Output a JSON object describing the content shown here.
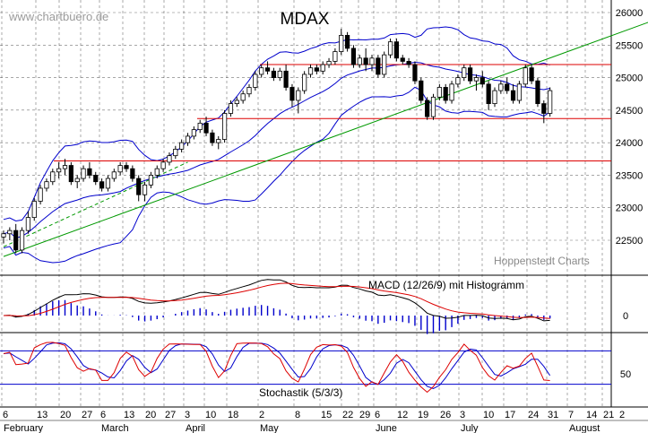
{
  "chart_data": {
    "type": "candlestick",
    "title": "MDAX",
    "watermark": "www.chartbuero.de",
    "source": "Hoppenstedt Charts",
    "colors": {
      "candle": "#000000",
      "bollinger": "#0000cc",
      "trendline": "#009900",
      "support": "#dd0000",
      "macd": "#000000",
      "signal": "#dd0000",
      "histogram": "#0000cc",
      "stoch_k": "#dd0000",
      "stoch_d": "#0000cc",
      "stoch_level": "#0000cc",
      "grid": "#000000"
    },
    "price_axis": {
      "ticks": [
        22500,
        23000,
        23500,
        24000,
        24500,
        25000,
        25500,
        26000
      ],
      "tick_labels": [
        "22500",
        "23000",
        "23500",
        "24000",
        "24500",
        "25000",
        "25500",
        "26000"
      ],
      "range": [
        21700,
        26150
      ]
    },
    "x_axis": {
      "day_labels": [
        "6",
        "13",
        "20",
        "27",
        "6",
        "13",
        "20",
        "27",
        "3",
        "10",
        "18",
        "2",
        "8",
        "15",
        "22",
        "29",
        "6",
        "12",
        "19",
        "26",
        "3",
        "10",
        "17",
        "24",
        "31",
        "7",
        "14",
        "21",
        "2"
      ],
      "month_labels": [
        "February",
        "March",
        "April",
        "May",
        "June",
        "July",
        "August"
      ],
      "month_day_index": [
        0,
        4,
        8,
        11,
        16,
        20,
        25
      ]
    },
    "support_levels": [
      25200,
      24370,
      23720
    ],
    "trendlines": [
      {
        "style": "solid",
        "from": [
          0,
          22250
        ],
        "to": [
          105,
          25850
        ]
      },
      {
        "style": "dashed",
        "from": [
          0,
          22400
        ],
        "to": [
          30,
          23700
        ]
      }
    ],
    "candles": [
      [
        22550,
        22650,
        22450,
        22600
      ],
      [
        22600,
        22700,
        22500,
        22650
      ],
      [
        22650,
        22750,
        22300,
        22350
      ],
      [
        22350,
        22700,
        22300,
        22650
      ],
      [
        22650,
        22950,
        22600,
        22850
      ],
      [
        22850,
        23150,
        22800,
        23100
      ],
      [
        23100,
        23350,
        23050,
        23300
      ],
      [
        23300,
        23450,
        23250,
        23400
      ],
      [
        23400,
        23600,
        23350,
        23550
      ],
      [
        23550,
        23700,
        23450,
        23600
      ],
      [
        23600,
        23750,
        23500,
        23650
      ],
      [
        23650,
        23700,
        23350,
        23400
      ],
      [
        23400,
        23500,
        23300,
        23450
      ],
      [
        23450,
        23650,
        23400,
        23600
      ],
      [
        23600,
        23700,
        23450,
        23500
      ],
      [
        23500,
        23550,
        23350,
        23400
      ],
      [
        23400,
        23450,
        23250,
        23300
      ],
      [
        23300,
        23500,
        23250,
        23450
      ],
      [
        23450,
        23600,
        23400,
        23550
      ],
      [
        23550,
        23700,
        23500,
        23650
      ],
      [
        23650,
        23700,
        23550,
        23600
      ],
      [
        23600,
        23650,
        23400,
        23450
      ],
      [
        23450,
        23500,
        23100,
        23200
      ],
      [
        23200,
        23400,
        23100,
        23350
      ],
      [
        23350,
        23550,
        23300,
        23500
      ],
      [
        23500,
        23650,
        23450,
        23600
      ],
      [
        23600,
        23750,
        23550,
        23700
      ],
      [
        23700,
        23850,
        23650,
        23800
      ],
      [
        23800,
        23950,
        23750,
        23900
      ],
      [
        23900,
        24050,
        23850,
        24000
      ],
      [
        24000,
        24150,
        23950,
        24100
      ],
      [
        24100,
        24250,
        24050,
        24200
      ],
      [
        24200,
        24350,
        24150,
        24300
      ],
      [
        24300,
        24400,
        24100,
        24150
      ],
      [
        24150,
        24200,
        23950,
        24000
      ],
      [
        24000,
        24100,
        23900,
        24050
      ],
      [
        24050,
        24500,
        24000,
        24450
      ],
      [
        24450,
        24650,
        24400,
        24600
      ],
      [
        24600,
        24700,
        24550,
        24650
      ],
      [
        24650,
        24800,
        24600,
        24750
      ],
      [
        24750,
        24900,
        24700,
        24850
      ],
      [
        24850,
        25100,
        24800,
        25050
      ],
      [
        25050,
        25200,
        25000,
        25150
      ],
      [
        25150,
        25250,
        25050,
        25100
      ],
      [
        25100,
        25150,
        24950,
        25000
      ],
      [
        25000,
        25150,
        24950,
        25100
      ],
      [
        25100,
        25200,
        24800,
        24850
      ],
      [
        24850,
        24900,
        24550,
        24650
      ],
      [
        24650,
        24850,
        24450,
        24800
      ],
      [
        24800,
        25100,
        24750,
        25050
      ],
      [
        25050,
        25200,
        25000,
        25150
      ],
      [
        25150,
        25200,
        25050,
        25100
      ],
      [
        25100,
        25250,
        25050,
        25200
      ],
      [
        25200,
        25300,
        25150,
        25250
      ],
      [
        25250,
        25450,
        25200,
        25400
      ],
      [
        25400,
        25750,
        25350,
        25650
      ],
      [
        25650,
        25700,
        25400,
        25450
      ],
      [
        25450,
        25500,
        25150,
        25200
      ],
      [
        25200,
        25350,
        25150,
        25300
      ],
      [
        25300,
        25450,
        25100,
        25200
      ],
      [
        25200,
        25350,
        25100,
        25300
      ],
      [
        25300,
        25350,
        25000,
        25050
      ],
      [
        25050,
        25400,
        25000,
        25350
      ],
      [
        25350,
        25600,
        25300,
        25550
      ],
      [
        25550,
        25600,
        25250,
        25300
      ],
      [
        25300,
        25350,
        25200,
        25250
      ],
      [
        25250,
        25300,
        25150,
        25200
      ],
      [
        25200,
        25250,
        24900,
        24950
      ],
      [
        24950,
        25000,
        24600,
        24650
      ],
      [
        24650,
        24700,
        24350,
        24400
      ],
      [
        24400,
        24750,
        24350,
        24700
      ],
      [
        24700,
        24900,
        24650,
        24850
      ],
      [
        24850,
        24900,
        24600,
        24650
      ],
      [
        24650,
        24950,
        24600,
        24900
      ],
      [
        24900,
        25050,
        24850,
        25000
      ],
      [
        25000,
        25200,
        24950,
        25150
      ],
      [
        25150,
        25200,
        24900,
        24950
      ],
      [
        24950,
        25050,
        24800,
        25000
      ],
      [
        25000,
        25100,
        24850,
        24900
      ],
      [
        24900,
        24950,
        24500,
        24600
      ],
      [
        24600,
        24850,
        24550,
        24800
      ],
      [
        24800,
        24950,
        24750,
        24900
      ],
      [
        24900,
        25000,
        24750,
        24800
      ],
      [
        24800,
        24900,
        24600,
        24650
      ],
      [
        24650,
        24950,
        24600,
        24900
      ],
      [
        24900,
        25200,
        24850,
        25150
      ],
      [
        25150,
        25200,
        24900,
        24950
      ],
      [
        24950,
        25000,
        24550,
        24600
      ],
      [
        24600,
        24650,
        24300,
        24450
      ],
      [
        24450,
        24850,
        24400,
        24800
      ]
    ],
    "macd": {
      "label": "MACD (12/26/9) mit Histogramm",
      "zero_label": "0"
    },
    "stochastic": {
      "label": "Stochastik (5/3/3)",
      "tick_labels": [
        "50"
      ],
      "levels": [
        80,
        20
      ]
    }
  }
}
